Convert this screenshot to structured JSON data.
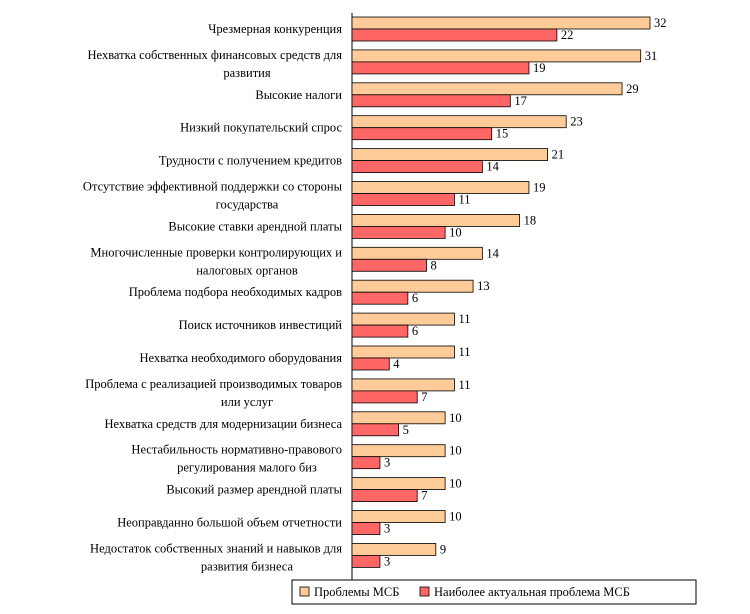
{
  "chart_data": {
    "type": "bar",
    "orientation": "horizontal",
    "categories": [
      [
        "Чрезмерная конкуренция"
      ],
      [
        "Нехватка собственных финансовых средств для",
        "развития"
      ],
      [
        "Высокие налоги"
      ],
      [
        "Низкий покупательский спрос"
      ],
      [
        "Трудности с получением кредитов"
      ],
      [
        "Отсутствие эффективной поддержки со стороны",
        "государства"
      ],
      [
        "Высокие ставки арендной платы"
      ],
      [
        "Многочисленные проверки контролирующих и",
        "налоговых органов"
      ],
      [
        "Проблема подбора необходимых кадров"
      ],
      [
        "Поиск источников инвестиций"
      ],
      [
        "Нехватка необходимого оборудования"
      ],
      [
        "Проблема с реализацией производимых товаров",
        "или услуг"
      ],
      [
        "Нехватка средств для модернизации бизнеса"
      ],
      [
        "Нестабильность нормативно-правового",
        "регулирования малого биз"
      ],
      [
        "Высокий размер арендной платы"
      ],
      [
        "Неоправданно большой объем отчетности"
      ],
      [
        "Недостаток собственных знаний и навыков для",
        "развития бизнеса"
      ]
    ],
    "series": [
      {
        "name": "Проблемы МСБ",
        "color": "#FFCC99",
        "values": [
          32,
          31,
          29,
          23,
          21,
          19,
          18,
          14,
          13,
          11,
          11,
          11,
          10,
          10,
          10,
          10,
          9
        ]
      },
      {
        "name": "Наиболее актуальная проблема МСБ",
        "color": "#FF6666",
        "values": [
          22,
          19,
          17,
          15,
          14,
          11,
          10,
          8,
          6,
          6,
          4,
          7,
          5,
          3,
          7,
          3,
          3
        ]
      }
    ],
    "xlim": [
      0,
      32
    ],
    "data_labels": true,
    "grid": false,
    "legend_position": "bottom-right"
  }
}
